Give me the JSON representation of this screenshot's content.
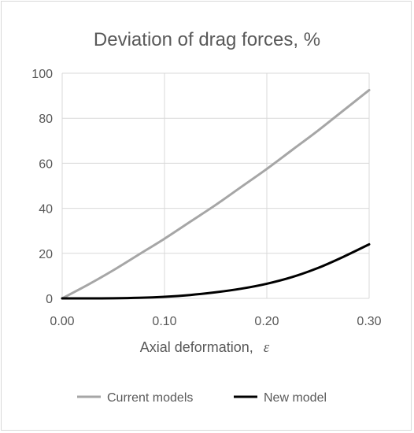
{
  "chart_data": {
    "type": "line",
    "title": "Deviation of drag forces, %",
    "xlabel": "Axial deformation,",
    "xlabel_symbol": "ε",
    "ylabel": "",
    "xlim": [
      0,
      0.3
    ],
    "ylim": [
      0,
      100
    ],
    "x_ticks": [
      "0.00",
      "0.10",
      "0.20",
      "0.30"
    ],
    "y_ticks": [
      "0",
      "20",
      "40",
      "60",
      "80",
      "100"
    ],
    "grid": true,
    "legend_position": "bottom",
    "series": [
      {
        "name": "Current models",
        "color": "#a6a6a6",
        "x": [
          0,
          0.025,
          0.05,
          0.075,
          0.1,
          0.125,
          0.15,
          0.175,
          0.2,
          0.225,
          0.25,
          0.275,
          0.3
        ],
        "values": [
          0,
          6,
          12.5,
          19.5,
          26.5,
          34,
          41.5,
          49.5,
          57.5,
          66,
          74.5,
          83.5,
          92.5
        ]
      },
      {
        "name": "New model",
        "color": "#000000",
        "x": [
          0,
          0.025,
          0.05,
          0.075,
          0.1,
          0.125,
          0.15,
          0.175,
          0.2,
          0.225,
          0.25,
          0.275,
          0.3
        ],
        "values": [
          0,
          0,
          0.05,
          0.25,
          0.7,
          1.5,
          2.7,
          4.3,
          6.5,
          9.5,
          13.5,
          18.5,
          24
        ]
      }
    ]
  }
}
